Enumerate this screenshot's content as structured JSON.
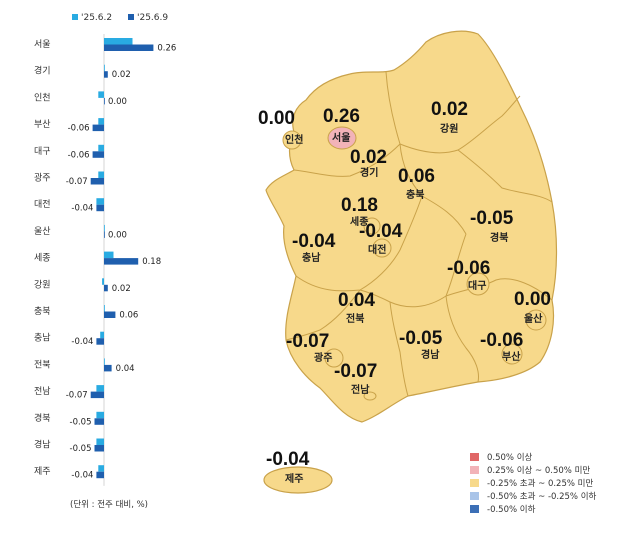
{
  "chart_data": [
    {
      "type": "bar",
      "orientation": "horizontal",
      "categories": [
        "서울",
        "경기",
        "인천",
        "부산",
        "대구",
        "광주",
        "대전",
        "울산",
        "세종",
        "강원",
        "충북",
        "충남",
        "전북",
        "전남",
        "경북",
        "경남",
        "제주"
      ],
      "series": [
        {
          "name": "'25.6.2",
          "color": "#29abe2",
          "values": [
            0.15,
            0.0,
            -0.03,
            -0.03,
            -0.03,
            -0.03,
            -0.04,
            0.0,
            0.05,
            -0.01,
            0.0,
            -0.02,
            0.0,
            -0.04,
            -0.04,
            -0.04,
            -0.03
          ]
        },
        {
          "name": "'25.6.9",
          "color": "#1f5fae",
          "values": [
            0.26,
            0.02,
            0.0,
            -0.06,
            -0.06,
            -0.07,
            -0.04,
            0.0,
            0.18,
            0.02,
            0.06,
            -0.04,
            0.04,
            -0.07,
            -0.05,
            -0.05,
            -0.04
          ]
        }
      ],
      "value_labels": [
        "0.26",
        "0.02",
        "0.00",
        "-0.06",
        "-0.06",
        "-0.07",
        "-0.04",
        "0.00",
        "0.18",
        "0.02",
        "0.06",
        "-0.04",
        "0.04",
        "-0.07",
        "-0.05",
        "-0.05",
        "-0.04"
      ],
      "legend_position": "top",
      "note": "(단위 : 전주 대비, %)"
    }
  ],
  "map": {
    "regions": [
      {
        "name": "서울",
        "value": "0.26",
        "color": "#f2b3b8"
      },
      {
        "name": "경기",
        "value": "0.02",
        "color": "#f7d98b"
      },
      {
        "name": "인천",
        "value": "0.00",
        "color": "#f7d98b"
      },
      {
        "name": "강원",
        "value": "0.02",
        "color": "#f7d98b"
      },
      {
        "name": "충북",
        "value": "0.06",
        "color": "#f7d98b"
      },
      {
        "name": "세종",
        "value": "0.18",
        "color": "#f7d98b"
      },
      {
        "name": "충남",
        "value": "-0.04",
        "color": "#f7d98b"
      },
      {
        "name": "대전",
        "value": "-0.04",
        "color": "#f7d98b"
      },
      {
        "name": "경북",
        "value": "-0.05",
        "color": "#f7d98b"
      },
      {
        "name": "대구",
        "value": "-0.06",
        "color": "#f7d98b"
      },
      {
        "name": "울산",
        "value": "0.00",
        "color": "#f7d98b"
      },
      {
        "name": "전북",
        "value": "0.04",
        "color": "#f7d98b"
      },
      {
        "name": "광주",
        "value": "-0.07",
        "color": "#f7d98b"
      },
      {
        "name": "경남",
        "value": "-0.05",
        "color": "#f7d98b"
      },
      {
        "name": "부산",
        "value": "-0.06",
        "color": "#f7d98b"
      },
      {
        "name": "전남",
        "value": "-0.07",
        "color": "#f7d98b"
      },
      {
        "name": "제주",
        "value": "-0.04",
        "color": "#f7d98b"
      }
    ],
    "legend": [
      {
        "label": "0.50% 이상",
        "color": "#e06666"
      },
      {
        "label": "0.25% 이상 ~ 0.50% 미만",
        "color": "#f2b3b8"
      },
      {
        "label": "-0.25% 초과 ~ 0.25% 미만",
        "color": "#f7d98b"
      },
      {
        "label": "-0.50% 초과 ~ -0.25% 이하",
        "color": "#a9c4e8"
      },
      {
        "label": "-0.50% 이하",
        "color": "#3c6fb6"
      }
    ],
    "land_color": "#f7d98b",
    "border_color": "#c9a24a"
  }
}
